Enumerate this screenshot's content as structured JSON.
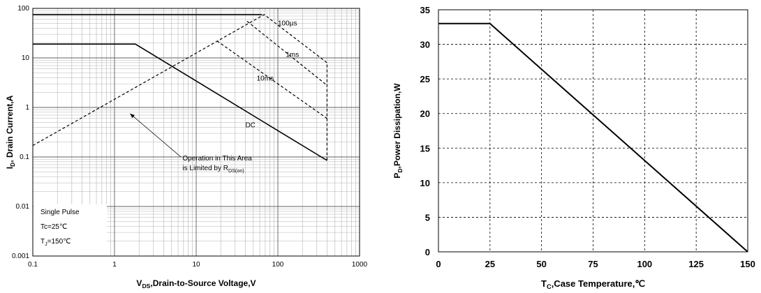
{
  "chart_data": [
    {
      "type": "line",
      "title": "",
      "xlabel_main": "V",
      "xlabel_sub": "DS",
      "xlabel_rest": ",Drain-to-Source Voltage,V",
      "ylabel_main": "I",
      "ylabel_sub": "D",
      "ylabel_rest": ", Drain Current,A",
      "xscale": "log",
      "yscale": "log",
      "xlim": [
        0.1,
        1000
      ],
      "ylim": [
        0.001,
        100
      ],
      "x_ticks": [
        "0.1",
        "1",
        "10",
        "100",
        "1000"
      ],
      "y_ticks": [
        "0.001",
        "0.01",
        "0.1",
        "1",
        "10",
        "100"
      ],
      "grid": true,
      "series": [
        {
          "name": "100µs",
          "style": "dashed",
          "x": [
            0.1,
            68,
            400,
            400
          ],
          "y": [
            0.17,
            75,
            8,
            0.085
          ]
        },
        {
          "name": "1ms",
          "style": "dashed",
          "x": [
            42,
            400
          ],
          "y": [
            55,
            2.8
          ]
        },
        {
          "name": "10ms",
          "style": "dashed",
          "x": [
            18,
            400
          ],
          "y": [
            22,
            0.6
          ]
        },
        {
          "name": "DC",
          "style": "solid",
          "x": [
            0.1,
            1.8,
            400
          ],
          "y": [
            19,
            19,
            0.085
          ]
        },
        {
          "name": "",
          "style": "solid",
          "x": [
            0.1,
            64
          ],
          "y": [
            75,
            75
          ]
        }
      ],
      "labels": [
        {
          "text": "100µs",
          "x": 100,
          "y": 45
        },
        {
          "text": "1ms",
          "x": 125,
          "y": 10.5
        },
        {
          "text": "10ms",
          "x": 55,
          "y": 3.5
        },
        {
          "text": "DC",
          "x": 40,
          "y": 0.4
        }
      ],
      "annotation": {
        "line1": "Operation in This Area",
        "line2_main": "is Limited by R",
        "line2_sub": "DS(on)",
        "text_at": [
          6.8,
          0.085
        ],
        "arrow_from": [
          6.5,
          0.1
        ],
        "arrow_to": [
          1.55,
          0.75
        ]
      },
      "legend_box": {
        "line1": "Single Pulse",
        "line2": "Tc=25℃",
        "line3_main": "T",
        "line3_sub": "J",
        "line3_rest": "=150℃"
      }
    },
    {
      "type": "line",
      "title": "",
      "xlabel_main": "T",
      "xlabel_sub": "C",
      "xlabel_rest": ",Case Temperature,℃",
      "ylabel_main": "P",
      "ylabel_sub": "D",
      "ylabel_rest": ",Power Dissipation,W",
      "xlim": [
        0,
        150
      ],
      "ylim": [
        0,
        35
      ],
      "x_ticks": [
        0,
        25,
        50,
        75,
        100,
        125,
        150
      ],
      "y_ticks": [
        0,
        5,
        10,
        15,
        20,
        25,
        30,
        35
      ],
      "grid": true,
      "series": [
        {
          "name": "",
          "style": "solid",
          "x": [
            0,
            25,
            150
          ],
          "y": [
            33,
            33,
            0
          ]
        }
      ]
    }
  ]
}
